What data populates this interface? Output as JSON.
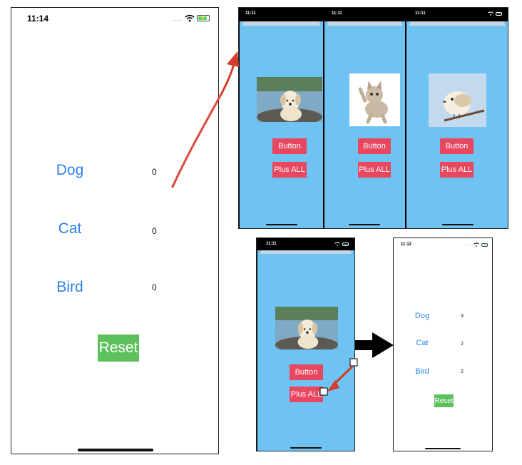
{
  "main_screen": {
    "time": "11:14",
    "rows": [
      {
        "label": "Dog",
        "count": "0"
      },
      {
        "label": "Cat",
        "count": "0"
      },
      {
        "label": "Bird",
        "count": "0"
      }
    ],
    "reset_label": "Reset"
  },
  "detail_screens": [
    {
      "time": "11:11",
      "image": "puppy-photo",
      "button_label": "Button",
      "plus_all_label": "Plus ALL"
    },
    {
      "time": "11:11",
      "image": "kitten-photo",
      "button_label": "Button",
      "plus_all_label": "Plus ALL"
    },
    {
      "time": "11:11",
      "image": "bird-photo",
      "button_label": "Button",
      "plus_all_label": "Plus ALL"
    }
  ],
  "tap_screen": {
    "time": "11:11",
    "image": "puppy-photo",
    "button_label": "Button",
    "plus_all_label": "Plus ALL"
  },
  "result_screen": {
    "time": "11:12",
    "rows": [
      {
        "label": "Dog",
        "count": "3"
      },
      {
        "label": "Cat",
        "count": "2"
      },
      {
        "label": "Bird",
        "count": "2"
      }
    ],
    "reset_label": "Reset"
  },
  "icons": [
    "signal-dots-icon",
    "wifi-icon",
    "battery-icon",
    "red-arrow-icon",
    "black-arrow-icon"
  ],
  "colors": {
    "label_blue": "#2e82e8",
    "reset_green": "#5cc15a",
    "screen_blue": "#6fc3f2",
    "button_red": "#e8485f",
    "arrow_red": "#d63a2a"
  }
}
